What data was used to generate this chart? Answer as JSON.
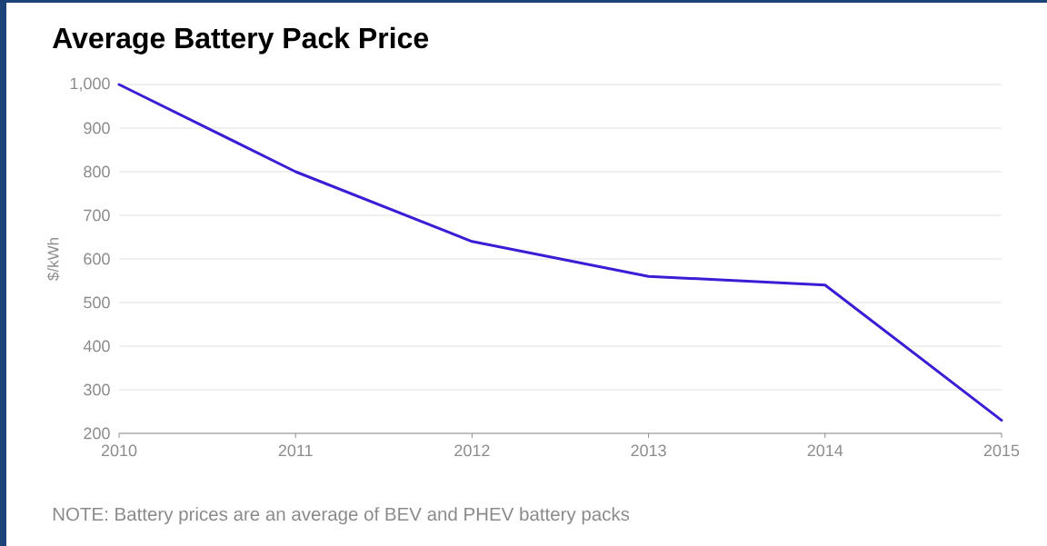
{
  "chart_data": {
    "type": "line",
    "title": "Average Battery Pack Price",
    "ylabel": "$/kWh",
    "x": [
      2010,
      2011,
      2012,
      2013,
      2014,
      2015
    ],
    "series": [
      {
        "color": "#3a1ed6",
        "values": [
          1000,
          800,
          640,
          560,
          540,
          230
        ]
      }
    ],
    "xlim": [
      2010,
      2015
    ],
    "ylim": [
      200,
      1000
    ],
    "xticks": [
      2010,
      2011,
      2012,
      2013,
      2014,
      2015
    ],
    "yticks": [
      200,
      300,
      400,
      500,
      600,
      700,
      800,
      900,
      {
        "value": 1000,
        "label": "1,000"
      }
    ],
    "grid": "y",
    "line_style": "solid",
    "annotations": [
      "NOTE: Battery prices are an average of BEV and PHEV battery packs"
    ]
  }
}
